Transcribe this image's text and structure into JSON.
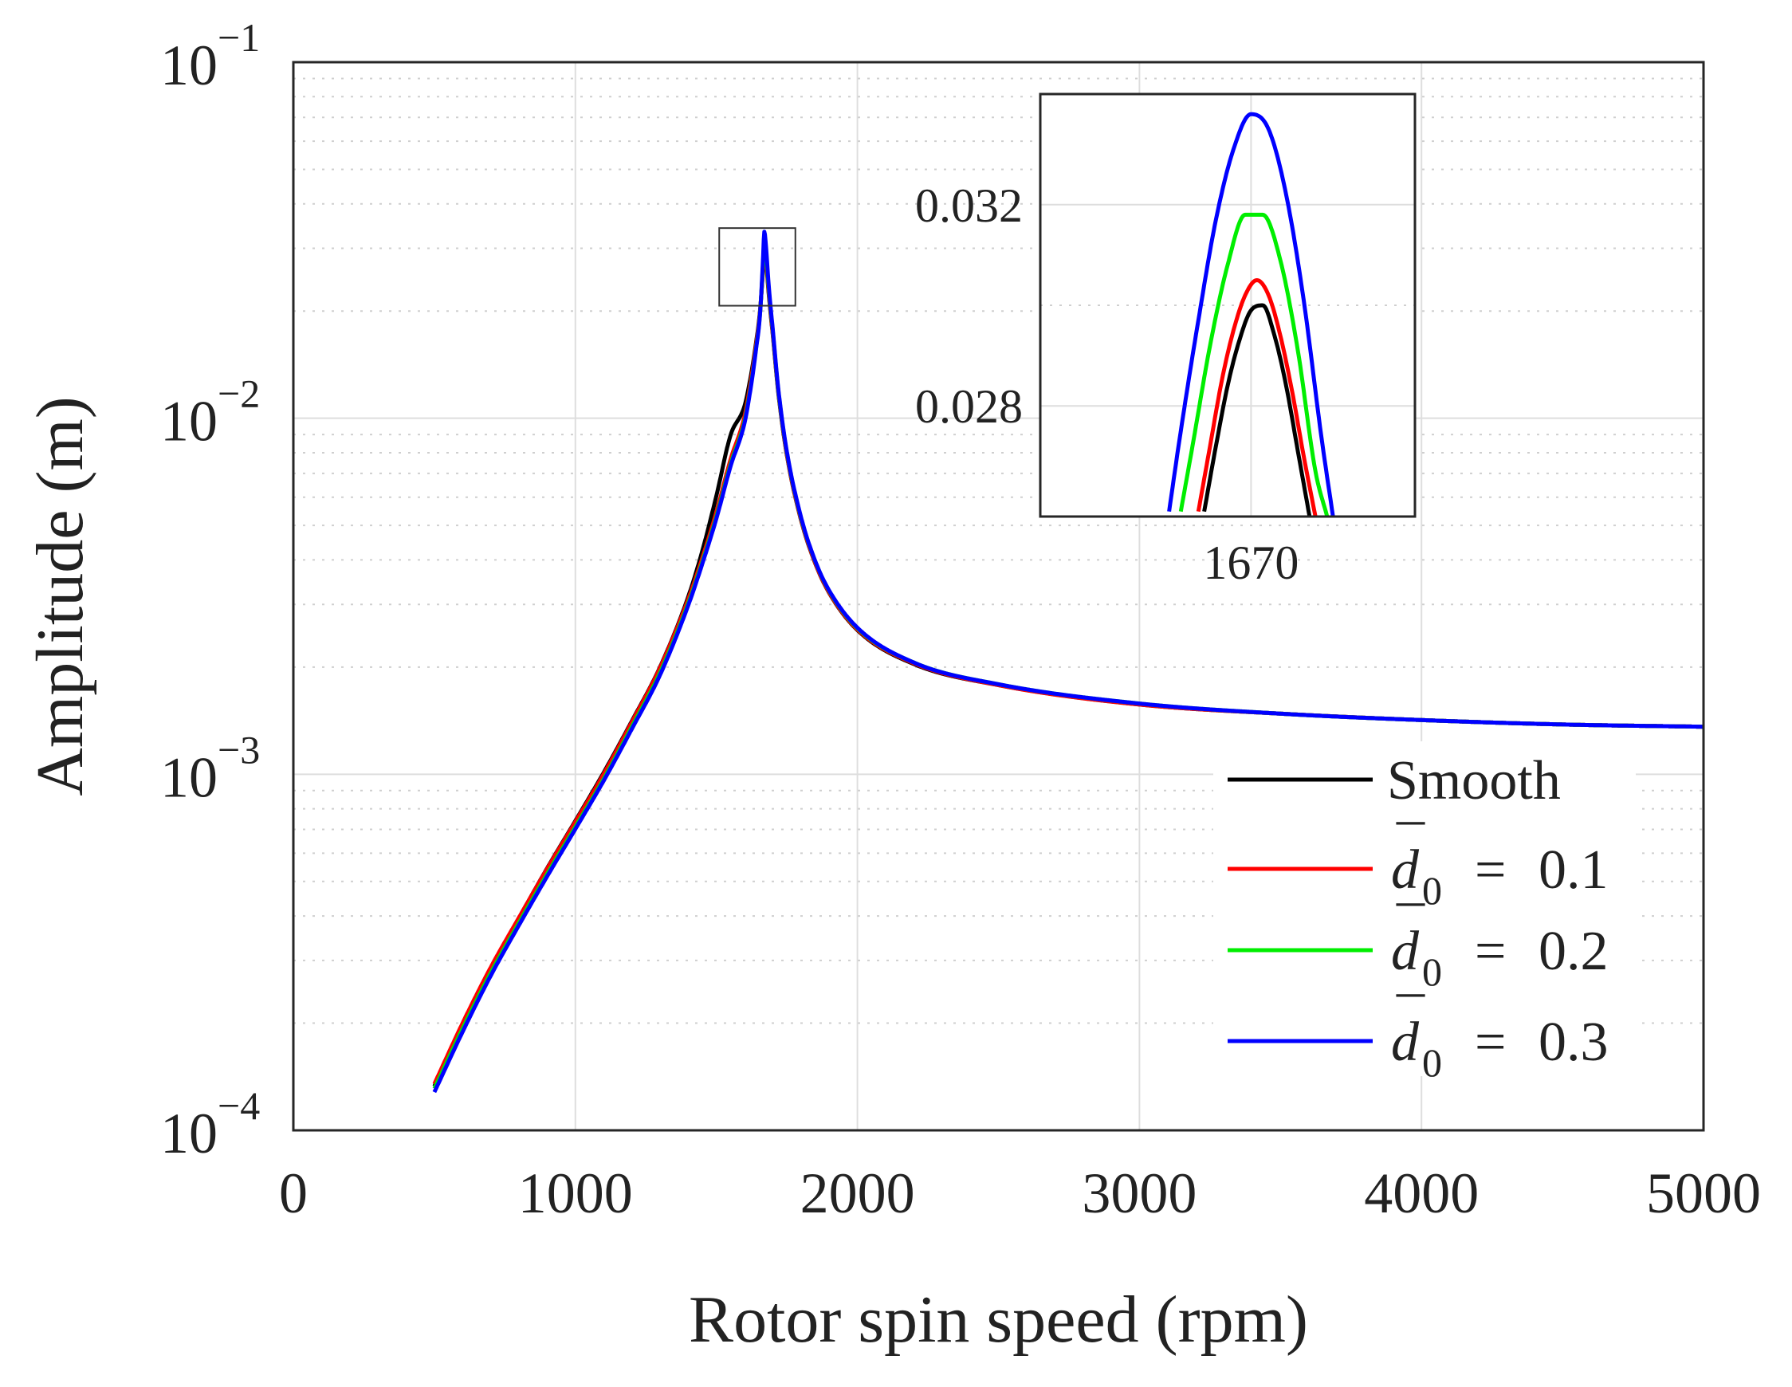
{
  "chart_data": [
    {
      "type": "line",
      "title": "",
      "xlabel": "Rotor spin speed (rpm)",
      "ylabel": "Amplitude (m)",
      "xlim": [
        0,
        5000
      ],
      "ylim": [
        0.0001,
        0.1
      ],
      "yscale": "log",
      "grid": true,
      "legend_position": "bottom-right",
      "x_ticks": [
        0,
        1000,
        2000,
        3000,
        4000,
        5000
      ],
      "x_tick_labels": [
        "0",
        "1000",
        "2000",
        "3000",
        "4000",
        "5000"
      ],
      "y_ticks": [
        0.0001,
        0.001,
        0.01,
        0.1
      ],
      "y_tick_labels": [
        {
          "base": "10",
          "exponent": "−4"
        },
        {
          "base": "10",
          "exponent": "−3"
        },
        {
          "base": "10",
          "exponent": "−2"
        },
        {
          "base": "10",
          "exponent": "−1"
        }
      ],
      "zoom_box": {
        "x": [
          1510,
          1780
        ],
        "y": [
          0.0207,
          0.0342
        ]
      },
      "x": [
        500,
        600,
        700,
        800,
        900,
        1000,
        1100,
        1200,
        1300,
        1400,
        1450,
        1500,
        1550,
        1600,
        1620,
        1640,
        1655,
        1665,
        1670,
        1675,
        1685,
        1700,
        1720,
        1750,
        1800,
        1850,
        1900,
        2000,
        2200,
        2500,
        3000,
        3500,
        4000,
        4500,
        5000
      ],
      "series": [
        {
          "name": "Smooth",
          "color": "#000000",
          "values": [
            0.000133,
            0.000198,
            0.000285,
            0.000395,
            0.000545,
            0.00074,
            0.00101,
            0.00141,
            0.002,
            0.00315,
            0.00424,
            0.00606,
            0.00895,
            0.01085,
            0.01288,
            0.01617,
            0.0202,
            0.0258,
            0.0297,
            0.0282,
            0.0226,
            0.0171,
            0.0117,
            0.00787,
            0.00518,
            0.00392,
            0.00323,
            0.00254,
            0.00204,
            0.00178,
            0.00157,
            0.00148,
            0.00142,
            0.00138,
            0.00136
          ]
        },
        {
          "name": "d0 = 0.1",
          "color": "#ff0000",
          "values": [
            0.000135,
            0.0002,
            0.000287,
            0.000396,
            0.000543,
            0.000735,
            0.001,
            0.0014,
            0.00199,
            0.0031,
            0.00405,
            0.00545,
            0.00765,
            0.01015,
            0.01243,
            0.01593,
            0.02002,
            0.0262,
            0.0303,
            0.0287,
            0.0229,
            0.0172,
            0.0118,
            0.0079,
            0.0052,
            0.00393,
            0.00324,
            0.00255,
            0.00205,
            0.00178,
            0.00157,
            0.00148,
            0.00142,
            0.00138,
            0.00136
          ]
        },
        {
          "name": "d0 = 0.2",
          "color": "#00ee00",
          "values": [
            0.000131,
            0.000193,
            0.000277,
            0.000383,
            0.000525,
            0.000712,
            0.00097,
            0.00136,
            0.00193,
            0.00302,
            0.00395,
            0.0053,
            0.00742,
            0.00985,
            0.01208,
            0.0156,
            0.01983,
            0.0268,
            0.0316,
            0.0297,
            0.0234,
            0.0175,
            0.0119,
            0.008,
            0.00525,
            0.00397,
            0.00327,
            0.00257,
            0.00206,
            0.00179,
            0.00158,
            0.00148,
            0.00142,
            0.00138,
            0.00136
          ]
        },
        {
          "name": "d0 = 0.3",
          "color": "#0000ff",
          "values": [
            0.000128,
            0.000189,
            0.000272,
            0.000377,
            0.000517,
            0.000702,
            0.000958,
            0.00134,
            0.0019,
            0.00298,
            0.0039,
            0.00523,
            0.00732,
            0.00972,
            0.01193,
            0.01548,
            0.01976,
            0.0276,
            0.0334,
            0.0309,
            0.0239,
            0.0177,
            0.012,
            0.00805,
            0.00528,
            0.00398,
            0.00328,
            0.00258,
            0.00206,
            0.00179,
            0.00158,
            0.00148,
            0.00142,
            0.00138,
            0.00136
          ]
        }
      ]
    },
    {
      "type": "line",
      "title": "",
      "xlabel": "",
      "ylabel": "",
      "xlim": [
        1634,
        1698
      ],
      "ylim": [
        0.0258,
        0.0342
      ],
      "grid": true,
      "x_ticks": [
        1670
      ],
      "x_tick_labels": [
        "1670"
      ],
      "y_ticks": [
        0.028,
        0.032
      ],
      "y_tick_labels": [
        "0.028",
        "0.032"
      ],
      "series": [
        {
          "name": "Smooth",
          "color": "#000000",
          "x": [
            1662,
            1664,
            1666,
            1668,
            1670,
            1672,
            1674,
            1676,
            1678,
            1680
          ],
          "values": [
            0.0259,
            0.0272,
            0.0284,
            0.0293,
            0.0299,
            0.03,
            0.0294,
            0.0284,
            0.0271,
            0.0258
          ]
        },
        {
          "name": "d0 = 0.1",
          "color": "#ff0000",
          "x": [
            1661,
            1663,
            1665,
            1667,
            1669,
            1671,
            1673,
            1675,
            1677,
            1679,
            1681
          ],
          "values": [
            0.0259,
            0.0272,
            0.0285,
            0.0295,
            0.0302,
            0.0305,
            0.0302,
            0.0294,
            0.0283,
            0.027,
            0.0258
          ]
        },
        {
          "name": "d0 = 0.2",
          "color": "#00ee00",
          "x": [
            1658,
            1660,
            1663,
            1666,
            1669,
            1672,
            1675,
            1678,
            1681,
            1683
          ],
          "values": [
            0.0259,
            0.0272,
            0.0292,
            0.0308,
            0.0318,
            0.0318,
            0.0309,
            0.0291,
            0.0267,
            0.0258
          ]
        },
        {
          "name": "d0 = 0.3",
          "color": "#0000ff",
          "x": [
            1656,
            1658,
            1661,
            1664,
            1667,
            1670,
            1673,
            1676,
            1679,
            1682,
            1684
          ],
          "values": [
            0.0259,
            0.0275,
            0.0297,
            0.0317,
            0.0331,
            0.0338,
            0.0335,
            0.0322,
            0.0301,
            0.0274,
            0.0258
          ]
        }
      ]
    }
  ],
  "legend": {
    "items": [
      {
        "kind": "text",
        "label": "Smooth",
        "color": "#000000"
      },
      {
        "kind": "math",
        "symbol": "d",
        "bar": "¯",
        "subscript": "0",
        "equals": "=",
        "value": "0.1",
        "color": "#ff0000"
      },
      {
        "kind": "math",
        "symbol": "d",
        "bar": "¯",
        "subscript": "0",
        "equals": "=",
        "value": "0.2",
        "color": "#00ee00"
      },
      {
        "kind": "math",
        "symbol": "d",
        "bar": "¯",
        "subscript": "0",
        "equals": "=",
        "value": "0.3",
        "color": "#0000ff"
      }
    ]
  }
}
